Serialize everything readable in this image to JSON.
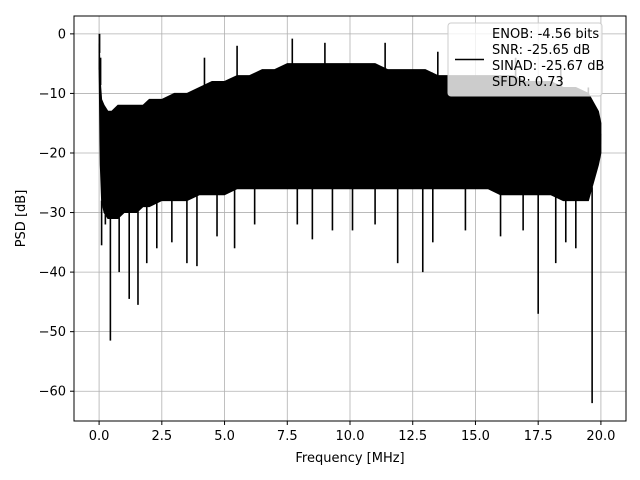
{
  "chart_data": {
    "type": "line",
    "xlabel": "Frequency [MHz]",
    "ylabel": "PSD [dB]",
    "xlim": [
      -1.0,
      21.0
    ],
    "ylim": [
      -65.0,
      3.0
    ],
    "grid": true,
    "xticks": [
      0.0,
      2.5,
      5.0,
      7.5,
      10.0,
      12.5,
      15.0,
      17.5,
      20.0
    ],
    "xtick_labels": [
      "0.0",
      "2.5",
      "5.0",
      "7.5",
      "10.0",
      "12.5",
      "15.0",
      "17.5",
      "20.0"
    ],
    "yticks": [
      0,
      -10,
      -20,
      -30,
      -40,
      -50,
      -60
    ],
    "ytick_labels": [
      "0",
      "−10",
      "−20",
      "−30",
      "−40",
      "−50",
      "−60"
    ],
    "legend": {
      "placement": "upper right",
      "entries": [
        "ENOB: -4.56 bits",
        "SNR: -25.65 dB",
        "SINAD: -25.67 dB",
        "SFDR: 0.73"
      ]
    },
    "series": [
      {
        "color": "#000000",
        "x": [
          0.0,
          0.05,
          0.1,
          0.2,
          0.35,
          0.5,
          0.75,
          1.0,
          1.25,
          1.5,
          1.75,
          2.0,
          2.5,
          3.0,
          3.5,
          4.0,
          4.5,
          5.0,
          5.5,
          6.0,
          6.5,
          7.0,
          7.5,
          8.0,
          8.5,
          9.0,
          9.5,
          10.0,
          10.5,
          11.0,
          11.5,
          12.0,
          12.5,
          13.0,
          13.5,
          14.0,
          14.5,
          15.0,
          15.5,
          16.0,
          16.5,
          17.0,
          17.5,
          18.0,
          18.5,
          19.0,
          19.5,
          19.9,
          20.0
        ],
        "upper": [
          0.0,
          -8,
          -11,
          -12,
          -13,
          -13,
          -12,
          -12,
          -12,
          -12,
          -12,
          -11,
          -11,
          -10,
          -10,
          -9,
          -8,
          -8,
          -7,
          -7,
          -6,
          -6,
          -5,
          -5,
          -5,
          -5,
          -5,
          -5,
          -5,
          -5,
          -6,
          -6,
          -6,
          -6,
          -7,
          -7,
          -7,
          -7,
          -7,
          -7,
          -7,
          -8,
          -8,
          -8,
          -9,
          -9,
          -10,
          -13,
          -15
        ],
        "lower": [
          -6,
          -22,
          -28,
          -30,
          -31,
          -31,
          -31,
          -30,
          -30,
          -30,
          -29,
          -29,
          -28,
          -28,
          -28,
          -27,
          -27,
          -27,
          -26,
          -26,
          -26,
          -26,
          -26,
          -26,
          -26,
          -26,
          -26,
          -26,
          -26,
          -26,
          -26,
          -26,
          -26,
          -26,
          -26,
          -26,
          -26,
          -26,
          -26,
          -27,
          -27,
          -27,
          -27,
          -27,
          -28,
          -28,
          -28,
          -22,
          -20
        ],
        "dips": [
          [
            0.1,
            -35.5
          ],
          [
            0.25,
            -32
          ],
          [
            0.45,
            -51.5
          ],
          [
            0.8,
            -40
          ],
          [
            1.2,
            -44.5
          ],
          [
            1.55,
            -45.5
          ],
          [
            1.9,
            -38.5
          ],
          [
            2.3,
            -36
          ],
          [
            2.9,
            -35
          ],
          [
            3.5,
            -38.5
          ],
          [
            3.9,
            -39
          ],
          [
            4.7,
            -34
          ],
          [
            5.4,
            -36
          ],
          [
            6.2,
            -32
          ],
          [
            7.9,
            -32
          ],
          [
            8.5,
            -34.5
          ],
          [
            9.3,
            -33
          ],
          [
            10.1,
            -33
          ],
          [
            11.0,
            -32
          ],
          [
            11.9,
            -38.5
          ],
          [
            12.9,
            -40
          ],
          [
            13.3,
            -35
          ],
          [
            14.6,
            -33
          ],
          [
            16.0,
            -34
          ],
          [
            16.9,
            -33
          ],
          [
            17.5,
            -47
          ],
          [
            18.2,
            -38.5
          ],
          [
            18.6,
            -35
          ],
          [
            19.0,
            -36
          ],
          [
            19.65,
            -62
          ]
        ],
        "peaks": [
          [
            0.02,
            0.0
          ],
          [
            0.06,
            -4
          ],
          [
            7.7,
            -0.8
          ],
          [
            11.4,
            -1.5
          ],
          [
            9.0,
            -1.5
          ],
          [
            5.5,
            -2
          ],
          [
            13.5,
            -3
          ],
          [
            4.2,
            -4
          ],
          [
            16.6,
            -4
          ],
          [
            18.4,
            -5.5
          ],
          [
            19.5,
            -9
          ]
        ]
      }
    ]
  }
}
